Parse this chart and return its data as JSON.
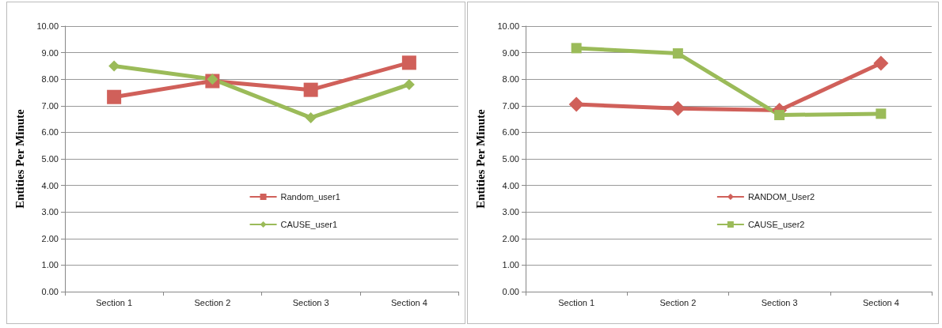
{
  "chart_data": [
    {
      "type": "line",
      "ylabel": "Entities Per Minute",
      "categories": [
        "Section 1",
        "Section 2",
        "Section 3",
        "Section 4"
      ],
      "series": [
        {
          "name": "Random_user1",
          "color": "#d0605a",
          "marker": "square",
          "values": [
            7.33,
            7.93,
            7.6,
            8.62
          ]
        },
        {
          "name": "CAUSE_user1",
          "color": "#9bbb59",
          "marker": "diamond",
          "values": [
            8.5,
            8.0,
            6.55,
            7.8
          ]
        }
      ],
      "ylim": [
        0,
        10
      ],
      "yticks": [
        {
          "value": 0,
          "label": "0.00"
        },
        {
          "value": 1,
          "label": "1.00"
        },
        {
          "value": 2,
          "label": "2.00"
        },
        {
          "value": 3,
          "label": "3.00"
        },
        {
          "value": 4,
          "label": "4.00"
        },
        {
          "value": 5,
          "label": "5.00"
        },
        {
          "value": 6,
          "label": "6.00"
        },
        {
          "value": 7,
          "label": "7.00"
        },
        {
          "value": 8,
          "label": "8.00"
        },
        {
          "value": 9,
          "label": "9.00"
        },
        {
          "value": 10,
          "label": "10.00"
        }
      ],
      "grid": "y",
      "legend": "center"
    },
    {
      "type": "line",
      "ylabel": "Entities Per Minute",
      "categories": [
        "Section 1",
        "Section 2",
        "Section 3",
        "Section 4"
      ],
      "series": [
        {
          "name": "RANDOM_User2",
          "color": "#d0605a",
          "marker": "diamond",
          "values": [
            7.05,
            6.9,
            6.83,
            8.6
          ]
        },
        {
          "name": "CAUSE_user2",
          "color": "#9bbb59",
          "marker": "square",
          "values": [
            9.17,
            8.97,
            6.65,
            6.7
          ]
        }
      ],
      "ylim": [
        0,
        10
      ],
      "yticks": [
        {
          "value": 0,
          "label": "0.00"
        },
        {
          "value": 1,
          "label": "1.00"
        },
        {
          "value": 2,
          "label": "2.00"
        },
        {
          "value": 3,
          "label": "3.00"
        },
        {
          "value": 4,
          "label": "4.00"
        },
        {
          "value": 5,
          "label": "5.00"
        },
        {
          "value": 6,
          "label": "6.00"
        },
        {
          "value": 7,
          "label": "7.00"
        },
        {
          "value": 8,
          "label": "8.00"
        },
        {
          "value": 9,
          "label": "9.00"
        },
        {
          "value": 10,
          "label": "10.00"
        }
      ],
      "grid": "y",
      "legend": "center"
    }
  ]
}
